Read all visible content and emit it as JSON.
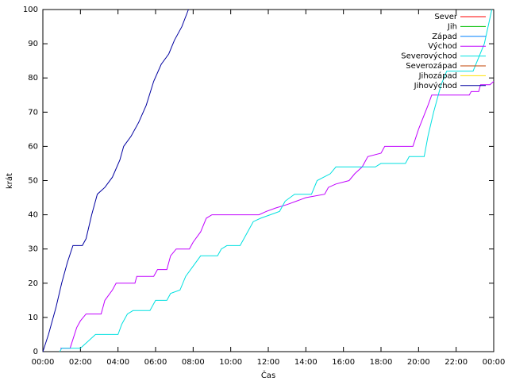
{
  "chart_data": {
    "type": "line",
    "xlabel": "Čas",
    "ylabel": "krát",
    "xlim": [
      0,
      24
    ],
    "ylim": [
      0,
      100
    ],
    "xticks": [
      {
        "value": 0,
        "label": "00:00"
      },
      {
        "value": 2,
        "label": "02:00"
      },
      {
        "value": 4,
        "label": "04:00"
      },
      {
        "value": 6,
        "label": "06:00"
      },
      {
        "value": 8,
        "label": "08:00"
      },
      {
        "value": 10,
        "label": "10:00"
      },
      {
        "value": 12,
        "label": "12:00"
      },
      {
        "value": 14,
        "label": "14:00"
      },
      {
        "value": 16,
        "label": "16:00"
      },
      {
        "value": 18,
        "label": "18:00"
      },
      {
        "value": 20,
        "label": "20:00"
      },
      {
        "value": 22,
        "label": "22:00"
      },
      {
        "value": 24,
        "label": "00:00"
      }
    ],
    "yticks": [
      0,
      10,
      20,
      30,
      40,
      50,
      60,
      70,
      80,
      90,
      100
    ],
    "grid": false,
    "legend": "top-right",
    "series": [
      {
        "name": "Sever",
        "color": "#ff0000",
        "x": [],
        "values": []
      },
      {
        "name": "Jih",
        "color": "#00c000",
        "x": [],
        "values": []
      },
      {
        "name": "Západ",
        "color": "#0080ff",
        "x": [],
        "values": []
      },
      {
        "name": "Východ",
        "color": "#c000ff",
        "x": [
          0.93,
          1.45,
          1.8,
          2.0,
          2.3,
          3.1,
          3.3,
          3.7,
          3.9,
          4.9,
          5.0,
          5.9,
          6.1,
          6.6,
          6.8,
          7.1,
          7.8,
          8.0,
          8.4,
          8.7,
          9.0,
          11.5,
          11.9,
          12.4,
          13.0,
          13.5,
          14.0,
          15.0,
          15.2,
          15.6,
          16.3,
          16.6,
          17.0,
          17.3,
          18.0,
          18.2,
          19.7,
          20.0,
          20.5,
          20.7,
          22.7,
          22.8,
          23.2,
          23.3,
          23.8,
          24
        ],
        "values": [
          1,
          1,
          7,
          9,
          11,
          11,
          15,
          18,
          20,
          20,
          22,
          22,
          24,
          24,
          28,
          30,
          30,
          32,
          35,
          39,
          40,
          40,
          41,
          42,
          43,
          44,
          45,
          46,
          48,
          49,
          50,
          52,
          54,
          57,
          58,
          60,
          60,
          65,
          72,
          75,
          75,
          76,
          76,
          78,
          78,
          79
        ]
      },
      {
        "name": "Severovýchod",
        "color": "#00e0e0",
        "x": [
          0.9,
          1.0,
          2.0,
          2.2,
          2.4,
          2.8,
          4.0,
          4.2,
          4.5,
          4.8,
          5.7,
          6.0,
          6.6,
          6.8,
          7.3,
          7.6,
          8.0,
          8.4,
          9.3,
          9.5,
          9.8,
          10.5,
          10.8,
          11.2,
          11.6,
          12.1,
          12.6,
          12.9,
          13.4,
          14.3,
          14.6,
          15.3,
          15.6,
          17.7,
          18.0,
          19.3,
          19.5,
          20.3,
          20.5,
          20.8,
          21.2,
          21.5,
          22.9,
          23.5,
          23.9
        ],
        "values": [
          0,
          1,
          1,
          2,
          3,
          5,
          5,
          8,
          11,
          12,
          12,
          15,
          15,
          17,
          18,
          22,
          25,
          28,
          28,
          30,
          31,
          31,
          34,
          38,
          39,
          40,
          41,
          44,
          46,
          46,
          50,
          52,
          54,
          54,
          55,
          55,
          57,
          57,
          63,
          70,
          78,
          82,
          82,
          90,
          100
        ]
      },
      {
        "name": "Severozápad",
        "color": "#c04000",
        "x": [],
        "values": []
      },
      {
        "name": "Jihozápad",
        "color": "#ffe000",
        "x": [],
        "values": []
      },
      {
        "name": "Jihovýchod",
        "color": "#0000a0",
        "x": [
          0,
          0.3,
          0.7,
          1.0,
          1.3,
          1.6,
          2.1,
          2.3,
          2.6,
          2.9,
          3.3,
          3.7,
          4.1,
          4.3,
          4.7,
          5.1,
          5.5,
          5.9,
          6.3,
          6.7,
          7.0,
          7.4,
          7.75
        ],
        "values": [
          0,
          5,
          13,
          20,
          26,
          31,
          31,
          33,
          40,
          46,
          48,
          51,
          56,
          60,
          63,
          67,
          72,
          79,
          84,
          87,
          91,
          95,
          100
        ]
      }
    ]
  }
}
